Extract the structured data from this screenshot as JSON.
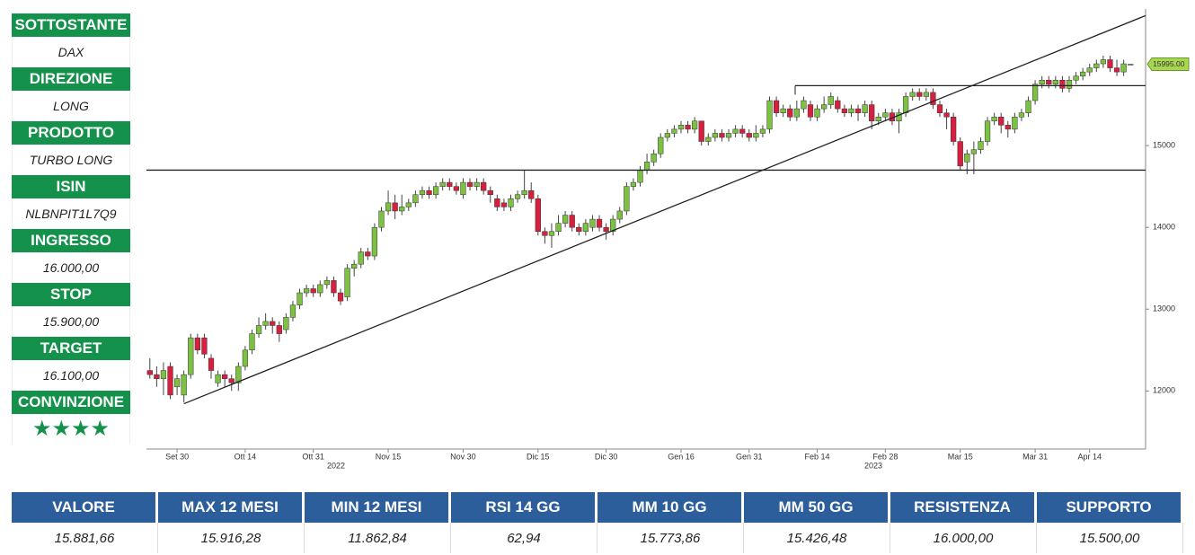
{
  "panel": [
    {
      "label": "SOTTOSTANTE",
      "value": "DAX"
    },
    {
      "label": "DIREZIONE",
      "value": "LONG"
    },
    {
      "label": "PRODOTTO",
      "value": "TURBO LONG"
    },
    {
      "label": "ISIN",
      "value": "NLBNPIT1L7Q9"
    },
    {
      "label": "INGRESSO",
      "value": "16.000,00"
    },
    {
      "label": "STOP",
      "value": "15.900,00"
    },
    {
      "label": "TARGET",
      "value": "16.100,00"
    },
    {
      "label": "CONVINZIONE",
      "value": "★★★★"
    }
  ],
  "chart_data": {
    "type": "candlestick",
    "up_color": "#7cc142",
    "down_color": "#d7203e",
    "categories": [
      null,
      null,
      null,
      null,
      "Set 30",
      null,
      null,
      null,
      null,
      null,
      null,
      null,
      null,
      null,
      "Ott 14",
      null,
      null,
      null,
      null,
      null,
      null,
      null,
      null,
      null,
      "Ott 31",
      null,
      null,
      null,
      null,
      null,
      null,
      null,
      null,
      null,
      null,
      "Nov 15",
      null,
      null,
      null,
      null,
      null,
      null,
      null,
      null,
      null,
      null,
      "Nov 30",
      null,
      null,
      null,
      null,
      null,
      null,
      null,
      null,
      null,
      null,
      "Dic 15",
      null,
      null,
      null,
      null,
      null,
      null,
      null,
      null,
      null,
      "Dic 30",
      null,
      null,
      null,
      null,
      null,
      null,
      null,
      null,
      null,
      null,
      "Gen 16",
      null,
      null,
      null,
      null,
      null,
      null,
      null,
      null,
      null,
      "Gen 31",
      null,
      null,
      null,
      null,
      null,
      null,
      null,
      null,
      null,
      "Feb 14",
      null,
      null,
      null,
      null,
      null,
      null,
      null,
      null,
      null,
      "Feb 28",
      null,
      null,
      null,
      null,
      null,
      null,
      null,
      null,
      null,
      null,
      "Mar 15",
      null,
      null,
      null,
      null,
      null,
      null,
      null,
      null,
      null,
      null,
      "Mar 31",
      null,
      null,
      null,
      null,
      null,
      null,
      null,
      "Apr 14",
      null,
      null,
      null,
      null,
      null,
      null
    ],
    "open": [
      12250,
      12200,
      12150,
      12300,
      12050,
      11950,
      12200,
      12650,
      12650,
      12400,
      12100,
      12200,
      12150,
      12100,
      12300,
      12500,
      12700,
      12800,
      12850,
      12800,
      12750,
      12900,
      13050,
      13200,
      13250,
      13200,
      13300,
      13350,
      13200,
      13150,
      13500,
      13550,
      13700,
      13650,
      14000,
      14200,
      14300,
      14200,
      14250,
      14300,
      14400,
      14450,
      14400,
      14500,
      14550,
      14500,
      14400,
      14550,
      14500,
      14550,
      14450,
      14350,
      14300,
      14250,
      14350,
      14400,
      14450,
      14350,
      13950,
      13900,
      13950,
      14050,
      14150,
      14000,
      13950,
      14000,
      14100,
      14000,
      13950,
      14100,
      14200,
      14500,
      14550,
      14700,
      14800,
      14900,
      15100,
      15150,
      15200,
      15250,
      15200,
      15300,
      15050,
      15100,
      15150,
      15100,
      15150,
      15200,
      15150,
      15100,
      15150,
      15200,
      15550,
      15400,
      15450,
      15350,
      15450,
      15500,
      15350,
      15450,
      15500,
      15550,
      15450,
      15400,
      15450,
      15400,
      15500,
      15300,
      15350,
      15400,
      15300,
      15400,
      15600,
      15650,
      15600,
      15650,
      15500,
      15400,
      15350,
      15050,
      14800,
      14900,
      14950,
      15050,
      15300,
      15350,
      15250,
      15200,
      15350,
      15400,
      15550,
      15750,
      15800,
      15750,
      15800,
      15700,
      15800,
      15850,
      15900,
      15950,
      16000,
      16050,
      15950,
      15900,
      15995
    ],
    "high": [
      12400,
      12300,
      12350,
      12350,
      12200,
      12250,
      12700,
      12700,
      12700,
      12450,
      12250,
      12250,
      12200,
      12350,
      12550,
      12750,
      12900,
      12950,
      12900,
      12850,
      12950,
      13100,
      13250,
      13300,
      13300,
      13350,
      13400,
      13400,
      13250,
      13550,
      13600,
      13750,
      13750,
      14050,
      14250,
      14450,
      14400,
      14400,
      14350,
      14450,
      14500,
      14500,
      14550,
      14600,
      14600,
      14550,
      14600,
      14600,
      14600,
      14600,
      14500,
      14400,
      14350,
      14400,
      14450,
      14700,
      14550,
      14400,
      14000,
      14050,
      14150,
      14200,
      14200,
      14050,
      14100,
      14150,
      14150,
      14050,
      14150,
      14250,
      14550,
      14600,
      14750,
      14900,
      14950,
      15150,
      15200,
      15250,
      15300,
      15300,
      15350,
      15300,
      15150,
      15200,
      15200,
      15200,
      15250,
      15250,
      15200,
      15250,
      15250,
      15600,
      15600,
      15500,
      15500,
      15550,
      15600,
      15550,
      15500,
      15600,
      15650,
      15600,
      15500,
      15500,
      15500,
      15550,
      15550,
      15400,
      15450,
      15450,
      15450,
      15650,
      15700,
      15700,
      15700,
      15700,
      15550,
      15450,
      15400,
      15100,
      14950,
      15050,
      15100,
      15350,
      15400,
      15400,
      15300,
      15400,
      15450,
      15600,
      15800,
      15850,
      15850,
      15850,
      15850,
      15850,
      15900,
      15950,
      16000,
      16050,
      16100,
      16100,
      16050,
      16050,
      16000
    ],
    "low": [
      12150,
      12050,
      11950,
      11900,
      11950,
      11860,
      12150,
      12450,
      12400,
      12150,
      12050,
      12050,
      12000,
      12000,
      12250,
      12450,
      12650,
      12750,
      12700,
      12600,
      12700,
      12850,
      13000,
      13150,
      13150,
      13150,
      13250,
      13150,
      13050,
      13100,
      13400,
      13500,
      13600,
      13600,
      13950,
      14150,
      14100,
      14150,
      14200,
      14250,
      14350,
      14350,
      14350,
      14450,
      14450,
      14400,
      14350,
      14450,
      14450,
      14400,
      14300,
      14200,
      14200,
      14200,
      14300,
      14350,
      14300,
      13900,
      13800,
      13750,
      13900,
      14000,
      13950,
      13900,
      13900,
      13950,
      13950,
      13850,
      13900,
      14050,
      14150,
      14450,
      14500,
      14650,
      14750,
      14850,
      15050,
      15100,
      15150,
      15150,
      15150,
      15000,
      15000,
      15050,
      15050,
      15050,
      15100,
      15100,
      15050,
      15050,
      15100,
      15150,
      15350,
      15350,
      15300,
      15300,
      15400,
      15300,
      15300,
      15400,
      15450,
      15400,
      15350,
      15350,
      15300,
      15350,
      15200,
      15250,
      15300,
      15250,
      15150,
      15350,
      15550,
      15550,
      15550,
      15450,
      15350,
      15200,
      15000,
      14700,
      14650,
      14650,
      14900,
      15000,
      15250,
      15150,
      15100,
      15150,
      15300,
      15350,
      15500,
      15700,
      15700,
      15700,
      15650,
      15650,
      15750,
      15800,
      15850,
      15900,
      15950,
      15900,
      15850,
      15850,
      15990
    ],
    "close": [
      12200,
      12150,
      12250,
      11950,
      12150,
      12200,
      12650,
      12500,
      12450,
      12250,
      12200,
      12150,
      12100,
      12300,
      12500,
      12700,
      12800,
      12850,
      12800,
      12700,
      12900,
      13050,
      13200,
      13250,
      13200,
      13300,
      13350,
      13200,
      13100,
      13500,
      13550,
      13700,
      13650,
      14000,
      14200,
      14300,
      14200,
      14250,
      14300,
      14400,
      14450,
      14400,
      14500,
      14550,
      14500,
      14450,
      14550,
      14500,
      14550,
      14450,
      14400,
      14250,
      14250,
      14350,
      14400,
      14450,
      14350,
      13950,
      13900,
      13950,
      14050,
      14150,
      14000,
      13950,
      14050,
      14100,
      14000,
      13950,
      14100,
      14200,
      14500,
      14550,
      14700,
      14800,
      14900,
      15100,
      15150,
      15200,
      15250,
      15200,
      15300,
      15050,
      15100,
      15150,
      15100,
      15150,
      15200,
      15150,
      15100,
      15150,
      15200,
      15550,
      15400,
      15450,
      15350,
      15450,
      15550,
      15350,
      15450,
      15500,
      15600,
      15450,
      15400,
      15450,
      15400,
      15500,
      15300,
      15350,
      15400,
      15300,
      15400,
      15600,
      15650,
      15600,
      15650,
      15500,
      15400,
      15350,
      15050,
      14750,
      14900,
      14950,
      15050,
      15300,
      15350,
      15250,
      15200,
      15350,
      15400,
      15550,
      15750,
      15800,
      15750,
      15800,
      15700,
      15800,
      15850,
      15900,
      15950,
      16000,
      16050,
      15950,
      15900,
      16000,
      15995
    ],
    "ylim": [
      11290,
      16670
    ],
    "yticks": [
      12000,
      13000,
      14000,
      15000
    ],
    "year_labels": [
      "2022",
      "2023"
    ],
    "trendline": [
      11844,
      16589
    ],
    "support": 14700,
    "resistance": 15733,
    "price_label": {
      "value": 15995,
      "label": "15995.00"
    }
  },
  "table": {
    "headers": [
      "VALORE",
      "MAX 12 MESI",
      "MIN 12 MESI",
      "RSI 14 GG",
      "MM 10 GG",
      "MM 50 GG",
      "RESISTENZA",
      "SUPPORTO"
    ],
    "values": [
      "15.881,66",
      "15.916,28",
      "11.862,84",
      "62,94",
      "15.773,86",
      "15.426,48",
      "16.000,00",
      "15.500,00"
    ]
  }
}
